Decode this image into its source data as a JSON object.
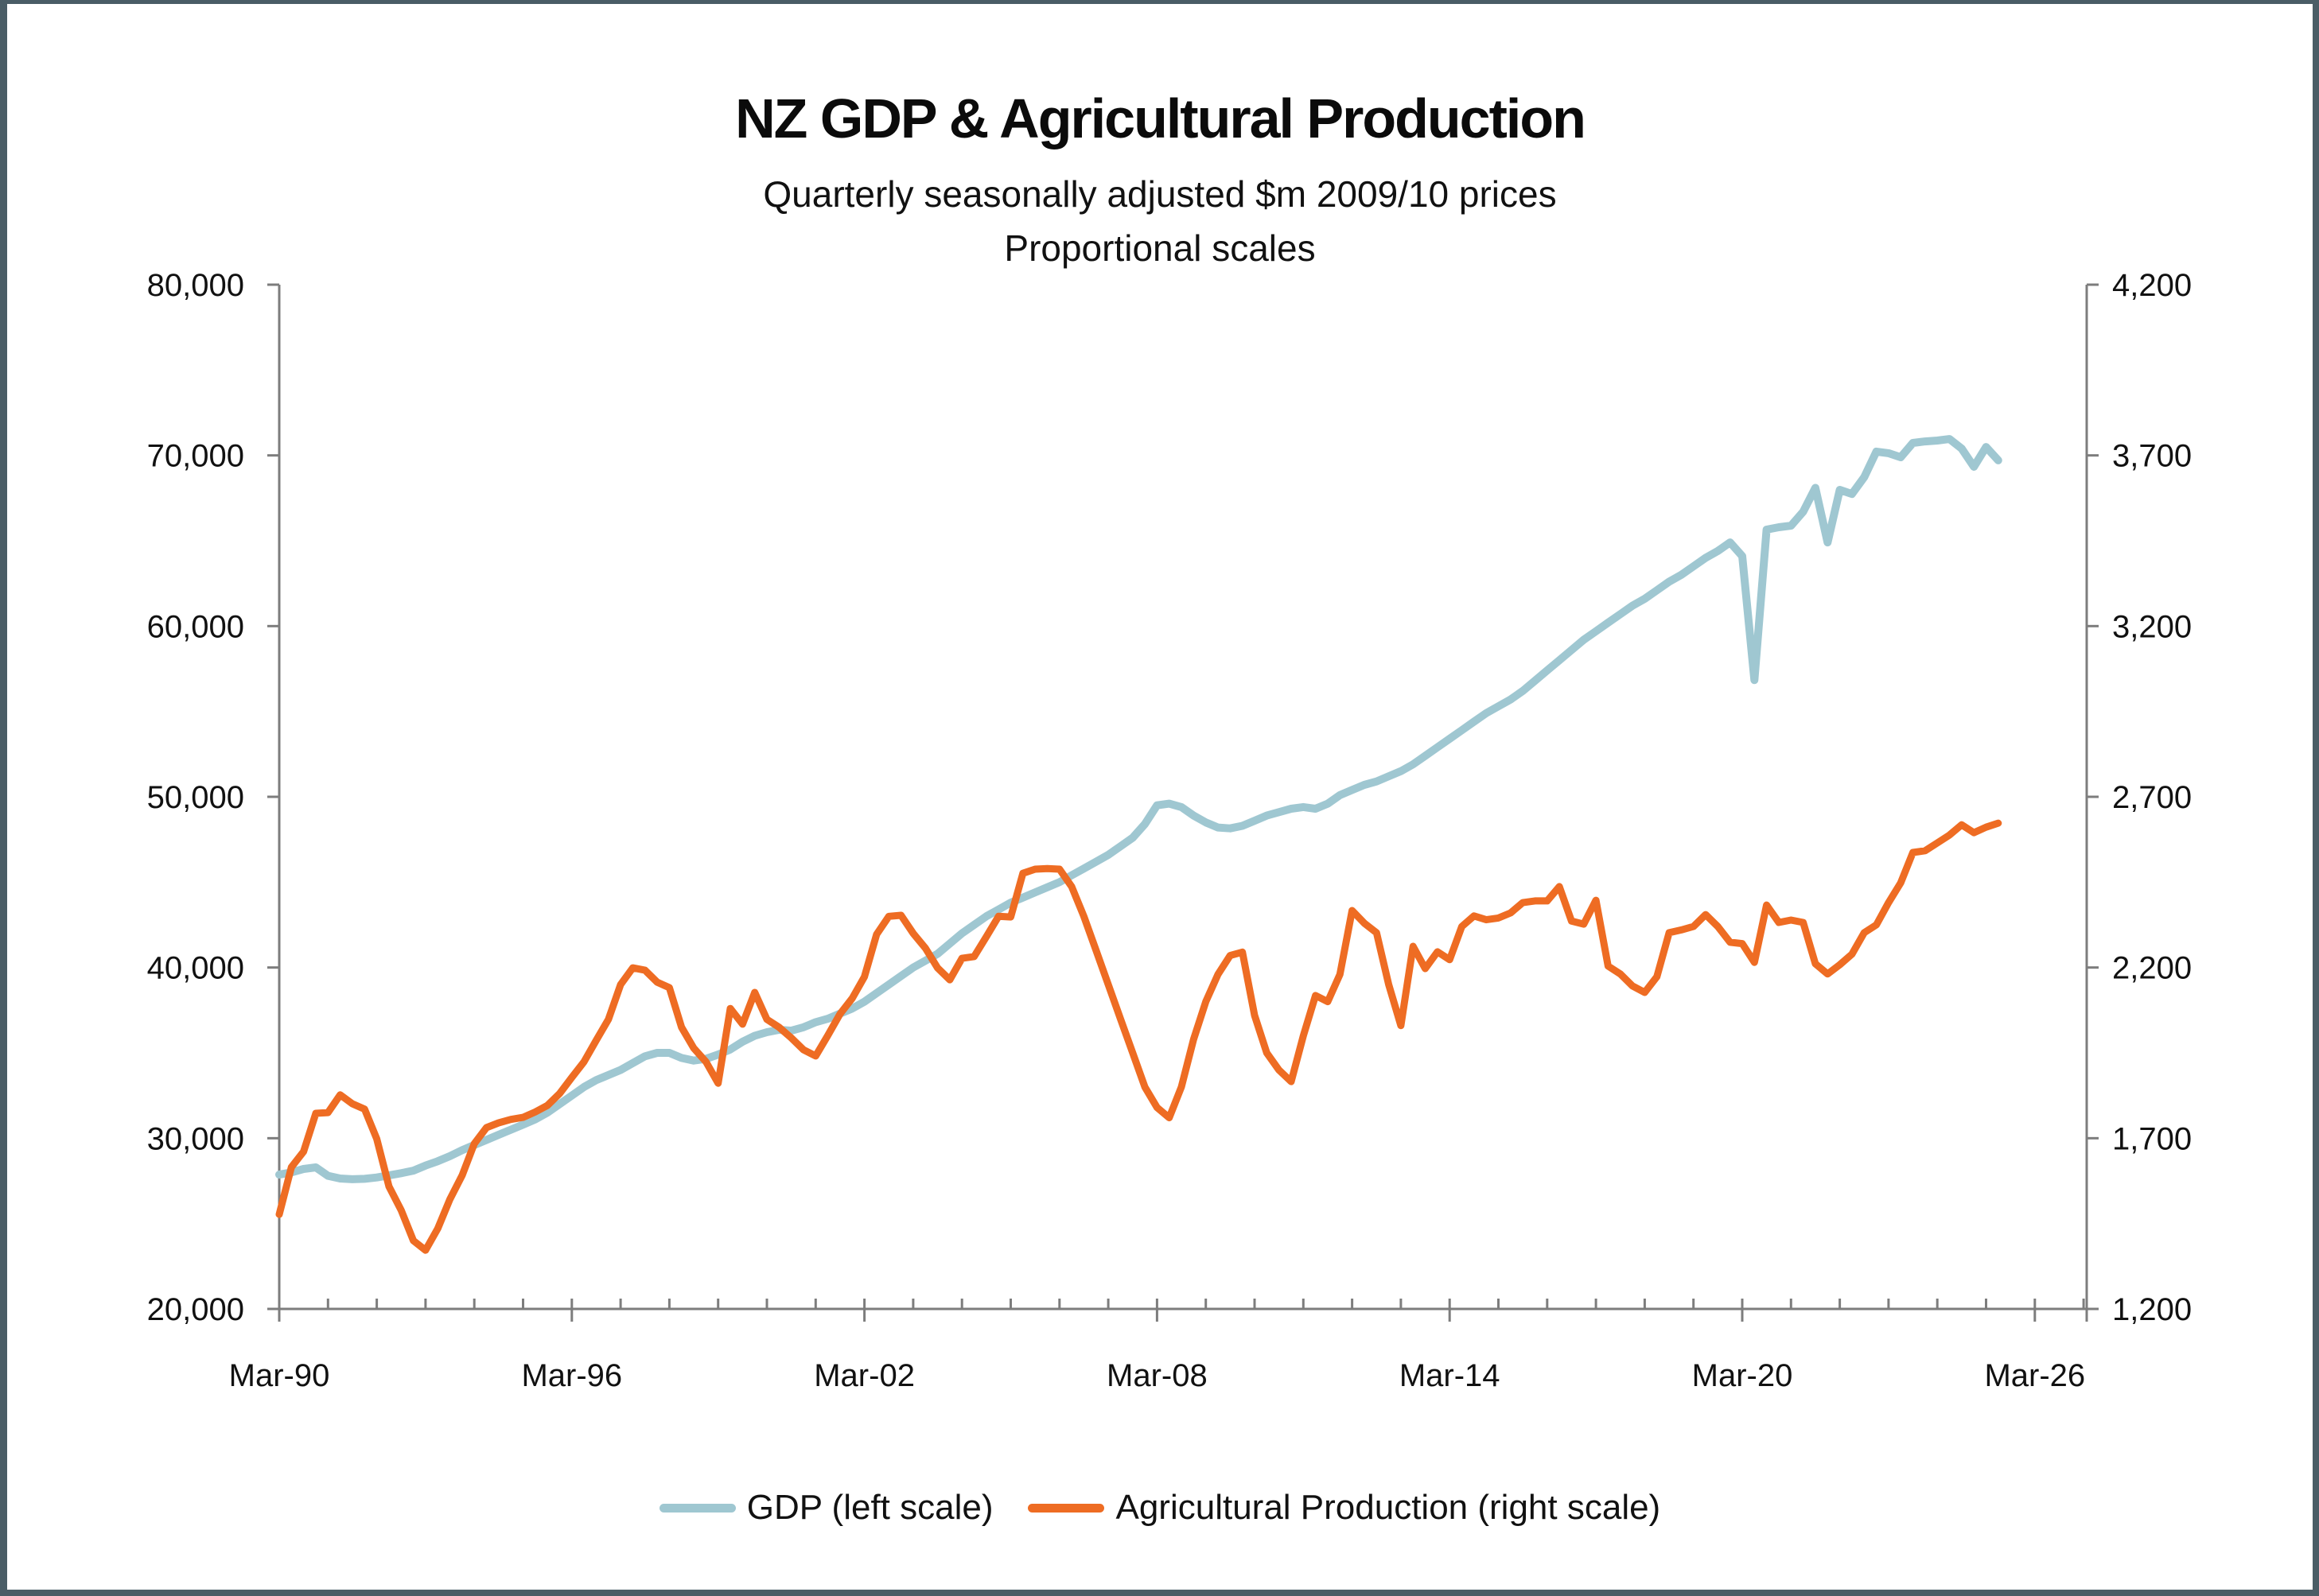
{
  "window": {
    "background": "#ffffff",
    "border_color": "#4a5d66"
  },
  "header": {
    "title": "NZ GDP & Agricultural Production",
    "subtitle_line1": "Quarterly seasonally adjusted $m 2009/10 prices",
    "subtitle_line2": "Proportional scales"
  },
  "legend": {
    "items": [
      {
        "label": "GDP (left scale)",
        "color": "#9fc7d1"
      },
      {
        "label": "Agricultural Production (right scale)",
        "color": "#ee6c23"
      }
    ]
  },
  "chart_data": {
    "type": "line",
    "title": "NZ GDP & Agricultural Production",
    "subtitle": "Quarterly seasonally adjusted $m 2009/10 prices — Proportional scales",
    "frequency": "quarterly",
    "x_start": "Mar-1990",
    "x_end": "Jun-2025",
    "grid": false,
    "legend_position": "bottom",
    "x_tick_labels": [
      "Mar-90",
      "Mar-96",
      "Mar-02",
      "Mar-08",
      "Mar-14",
      "Mar-20",
      "Mar-26"
    ],
    "x_tick_years": [
      1990,
      1996,
      2002,
      2008,
      2014,
      2020,
      2026
    ],
    "minor_tick_year_start": 1990,
    "minor_tick_year_end": 2027,
    "left_axis": {
      "min": 20000,
      "max": 80000,
      "tick_step": 10000,
      "tick_labels": [
        "80,000",
        "70,000",
        "60,000",
        "50,000",
        "40,000",
        "30,000",
        "20,000"
      ]
    },
    "right_axis": {
      "min": 1200,
      "max": 4200,
      "tick_step": 500,
      "tick_labels": [
        "4,200",
        "3,700",
        "3,200",
        "2,700",
        "2,200",
        "1,700",
        "1,200"
      ]
    },
    "series": [
      {
        "name": "GDP (left scale)",
        "axis": "left",
        "color": "#9fc7d1",
        "stroke_width": 10,
        "values": [
          27870,
          28000,
          28200,
          28290,
          27800,
          27640,
          27600,
          27620,
          27700,
          27820,
          27950,
          28100,
          28400,
          28650,
          28950,
          29300,
          29600,
          29900,
          30200,
          30500,
          30800,
          31100,
          31500,
          32000,
          32500,
          33000,
          33400,
          33700,
          34000,
          34400,
          34800,
          35000,
          35000,
          34700,
          34550,
          34650,
          34900,
          35200,
          35650,
          36000,
          36210,
          36350,
          36300,
          36500,
          36800,
          37000,
          37300,
          37600,
          38000,
          38500,
          39000,
          39500,
          40000,
          40400,
          40800,
          41400,
          42000,
          42500,
          43000,
          43400,
          43800,
          44100,
          44400,
          44700,
          45000,
          45400,
          45800,
          46200,
          46600,
          47100,
          47600,
          48400,
          49500,
          49600,
          49400,
          48900,
          48500,
          48200,
          48150,
          48300,
          48600,
          48900,
          49100,
          49300,
          49400,
          49300,
          49600,
          50100,
          50400,
          50700,
          50900,
          51200,
          51500,
          51900,
          52400,
          52900,
          53400,
          53900,
          54400,
          54900,
          55300,
          55700,
          56200,
          56800,
          57400,
          58000,
          58600,
          59200,
          59700,
          60200,
          60700,
          61200,
          61600,
          62100,
          62600,
          63000,
          63500,
          64000,
          64400,
          64900,
          64100,
          56840,
          65650,
          65790,
          65880,
          66700,
          68100,
          64900,
          67980,
          67740,
          68720,
          70220,
          70130,
          69890,
          70730,
          70820,
          70870,
          70960,
          70400,
          69330,
          70490,
          69710
        ]
      },
      {
        "name": "Agricultural Production (right scale)",
        "axis": "right",
        "color": "#ee6c23",
        "stroke_width": 9,
        "values": [
          1477,
          1615,
          1661,
          1773,
          1775,
          1827,
          1801,
          1785,
          1698,
          1559,
          1489,
          1400,
          1372,
          1435,
          1521,
          1591,
          1684,
          1731,
          1745,
          1755,
          1761,
          1777,
          1796,
          1831,
          1878,
          1924,
          1987,
          2048,
          2150,
          2199,
          2192,
          2157,
          2141,
          2025,
          1964,
          1924,
          1861,
          2080,
          2034,
          2127,
          2048,
          2025,
          1994,
          1959,
          1941,
          2001,
          2064,
          2110,
          2173,
          2297,
          2350,
          2353,
          2300,
          2257,
          2199,
          2164,
          2227,
          2232,
          2290,
          2350,
          2348,
          2476,
          2488,
          2490,
          2488,
          2437,
          2350,
          2250,
          2150,
          2050,
          1950,
          1850,
          1790,
          1760,
          1850,
          1990,
          2100,
          2180,
          2235,
          2245,
          2060,
          1950,
          1900,
          1866,
          2000,
          2118,
          2100,
          2180,
          2367,
          2330,
          2302,
          2150,
          2030,
          2262,
          2197,
          2246,
          2223,
          2320,
          2351,
          2340,
          2345,
          2360,
          2390,
          2395,
          2395,
          2437,
          2336,
          2327,
          2397,
          2204,
          2181,
          2146,
          2127,
          2173,
          2302,
          2310,
          2320,
          2355,
          2320,
          2274,
          2270,
          2215,
          2383,
          2332,
          2339,
          2332,
          2211,
          2181,
          2208,
          2239,
          2302,
          2325,
          2390,
          2448,
          2537,
          2542,
          2565,
          2588,
          2618,
          2595,
          2611,
          2623
        ]
      }
    ]
  }
}
